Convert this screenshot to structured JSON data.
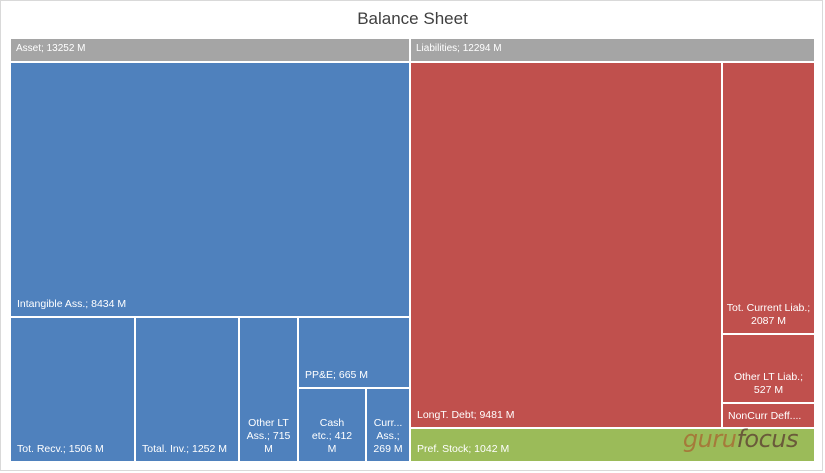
{
  "chart_data": {
    "type": "treemap",
    "title": "Balance Sheet",
    "groups": [
      {
        "name": "Asset",
        "label": "Asset; 13252 M",
        "value": 13252,
        "items": [
          {
            "name": "Intangible Ass.",
            "label": "Intangible Ass.; 8434 M",
            "value": 8434
          },
          {
            "name": "Tot. Recv.",
            "label": "Tot. Recv.; 1506 M",
            "value": 1506
          },
          {
            "name": "Total. Inv.",
            "label": "Total. Inv.; 1252 M",
            "value": 1252
          },
          {
            "name": "Other LT Ass.",
            "label": "Other LT Ass.; 715 M",
            "value": 715
          },
          {
            "name": "PP&E",
            "label": "PP&E; 665 M",
            "value": 665
          },
          {
            "name": "Cash etc.",
            "label": "Cash etc.; 412 M",
            "value": 412
          },
          {
            "name": "Curr... Ass.",
            "label": "Curr... Ass.; 269 M",
            "value": 269
          }
        ]
      },
      {
        "name": "Liabilities",
        "label": "Liabilities; 12294 M",
        "value": 12294,
        "items": [
          {
            "name": "LongT. Debt",
            "label": "LongT. Debt; 9481 M",
            "value": 9481
          },
          {
            "name": "Tot. Current Liab.",
            "label": "Tot. Current Liab.; 2087 M",
            "value": 2087
          },
          {
            "name": "Other LT Liab.",
            "label": "Other LT Liab.; 527 M",
            "value": 527
          },
          {
            "name": "NonCurr Deff....",
            "label": "NonCurr Deff....",
            "value": null
          },
          {
            "name": "Pref. Stock",
            "label": "Pref. Stock; 1042 M",
            "value": 1042
          }
        ]
      }
    ],
    "colors": {
      "asset": "#4f81bd",
      "liability": "#c0504d",
      "pref_stock": "#9bbb59",
      "header": "#a5a5a5"
    }
  },
  "watermark": {
    "part1": "guru",
    "part2": "focus"
  }
}
